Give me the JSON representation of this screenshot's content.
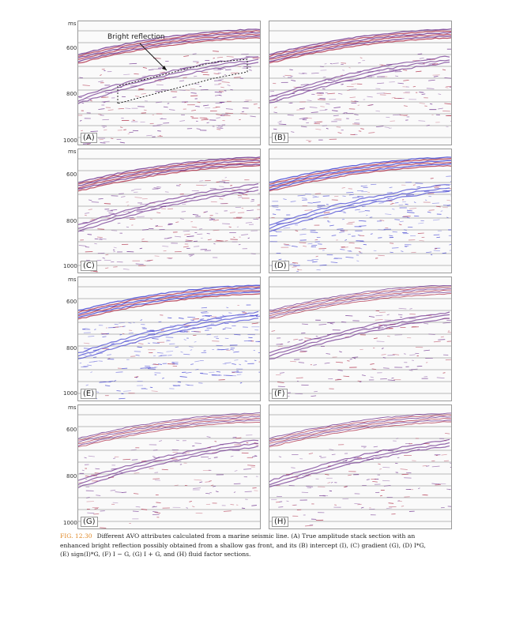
{
  "axis": {
    "unit": "ms",
    "ticks": [
      "600",
      "800",
      "1000"
    ]
  },
  "annotation": {
    "label": "Bright reflection"
  },
  "panels": [
    {
      "letter": "(A)",
      "style": "stack"
    },
    {
      "letter": "(B)",
      "style": "stack"
    },
    {
      "letter": "(C)",
      "style": "stack"
    },
    {
      "letter": "(D)",
      "style": "blue"
    },
    {
      "letter": "(E)",
      "style": "blue"
    },
    {
      "letter": "(F)",
      "style": "stack-light"
    },
    {
      "letter": "(G)",
      "style": "stack-light"
    },
    {
      "letter": "(H)",
      "style": "stack-light"
    }
  ],
  "colors": {
    "red": "#b0304a",
    "purple": "#6a2a8a",
    "blue": "#3a3ad0",
    "caption_accent": "#e08a2a"
  },
  "caption": {
    "fig_num": "FIG. 12.30",
    "line1": "Different AVO attributes calculated from a marine seismic line. (A) True amplitude stack section with an",
    "line2": "enhanced bright reflection possibly obtained from a shallow gas front, and its (B) intercept (I), (C) gradient (G), (D) I*G,",
    "line3": "(E) sign(I)*G, (F) I − G, (G) I + G, and (H) fluid factor sections."
  }
}
